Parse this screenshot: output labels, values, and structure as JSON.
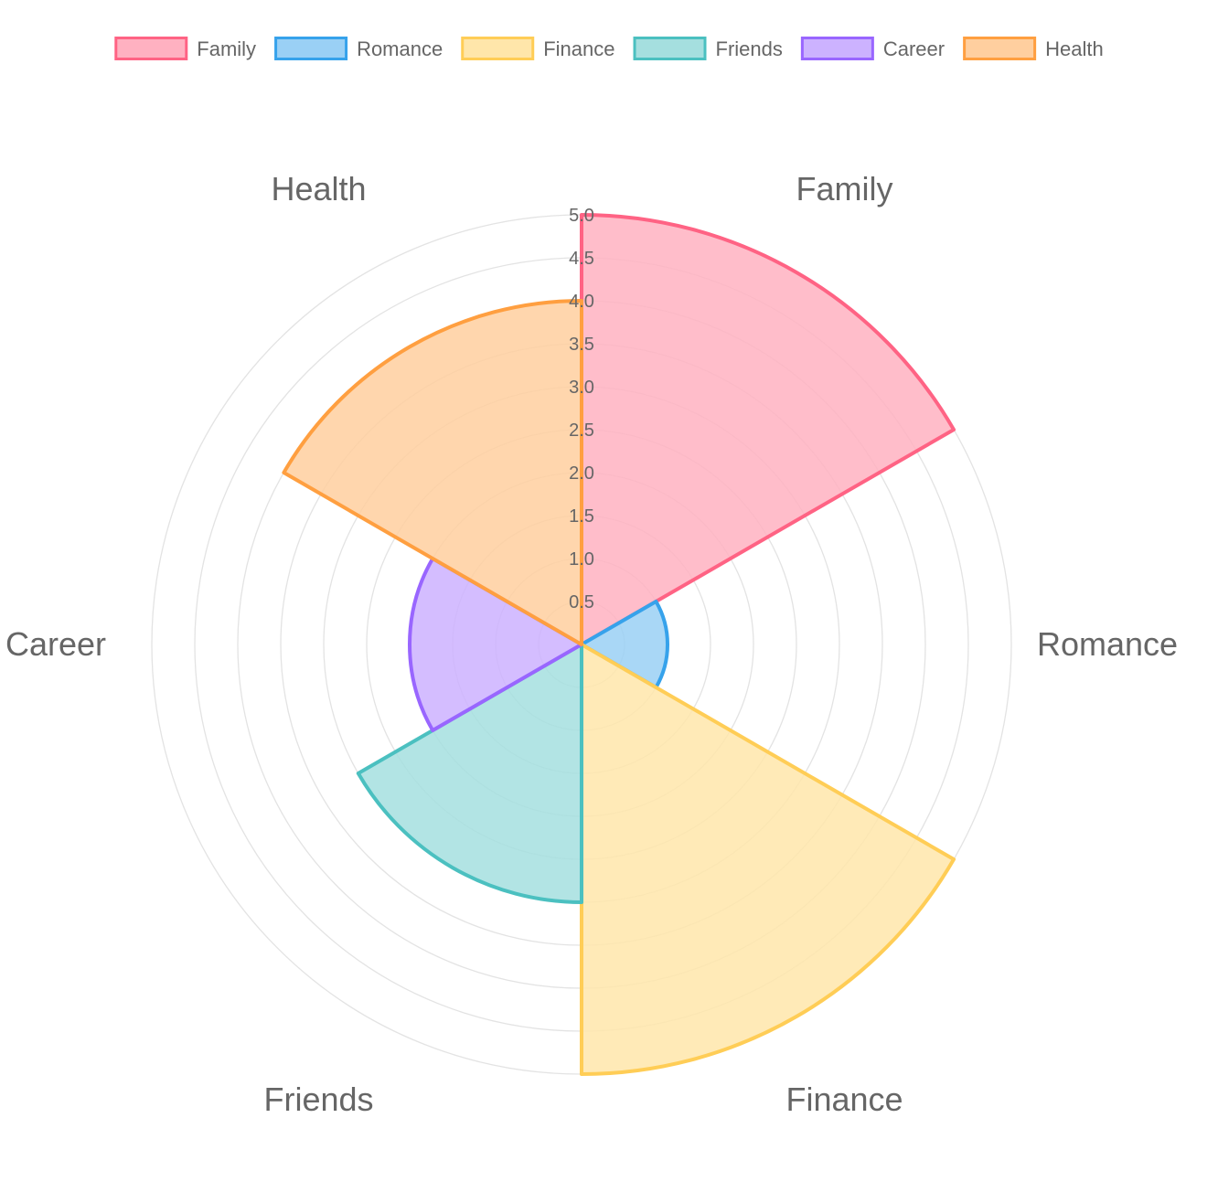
{
  "chart_data": {
    "type": "polarArea",
    "categories": [
      "Family",
      "Romance",
      "Finance",
      "Friends",
      "Career",
      "Health"
    ],
    "values": [
      5,
      1,
      5,
      3,
      2,
      4
    ],
    "colors": {
      "Family": {
        "fill": "#ffb1c1",
        "stroke": "#ff6384"
      },
      "Romance": {
        "fill": "#9ad0f5",
        "stroke": "#36a2eb"
      },
      "Finance": {
        "fill": "#ffe6aa",
        "stroke": "#ffcd56"
      },
      "Friends": {
        "fill": "#a5dfdf",
        "stroke": "#4bc0c0"
      },
      "Career": {
        "fill": "#ccb2ff",
        "stroke": "#9966ff"
      },
      "Health": {
        "fill": "#ffcf9f",
        "stroke": "#ff9f40"
      }
    },
    "r_range": [
      0,
      5
    ],
    "ticks": [
      "0.5",
      "1.0",
      "1.5",
      "2.0",
      "2.5",
      "3.0",
      "3.5",
      "4.0",
      "4.5",
      "5.0"
    ],
    "tick_values": [
      0.5,
      1,
      1.5,
      2,
      2.5,
      3,
      3.5,
      4,
      4.5,
      5
    ],
    "grid": true,
    "legend_position": "top"
  }
}
